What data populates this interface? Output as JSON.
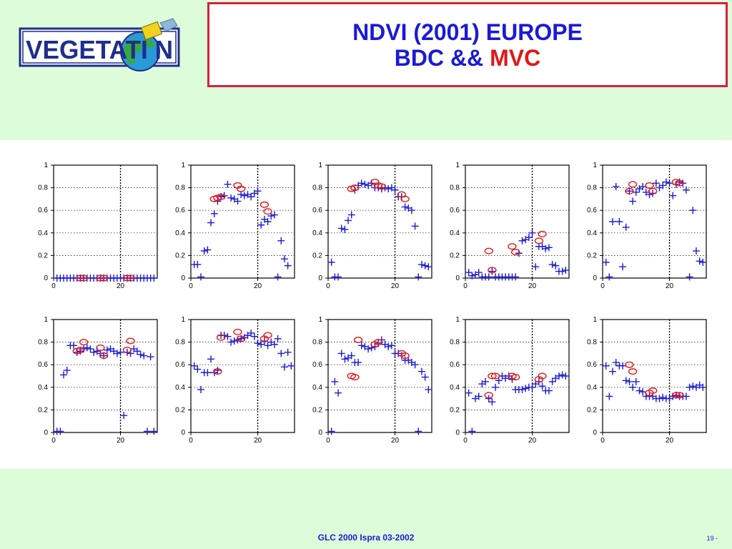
{
  "header": {
    "logo_text": "VEGETATI N",
    "title_line1": "NDVI (2001) EUROPE",
    "title_line2_prefix": "BDC && ",
    "title_line2_highlight": "MVC"
  },
  "footer": {
    "text": "GLC 2000 Ispra 03-2002",
    "page": "19 -"
  },
  "colors": {
    "background": "#ddfcd9",
    "title_border": "#d61f3f",
    "title_text": "#1a1ad6",
    "highlight": "#e01818",
    "bdc_marker": "#1a1ad6",
    "mvc_marker": "#e01818",
    "grid": "#000000"
  },
  "chart_data": [
    {
      "type": "scatter",
      "xlim": [
        0,
        31
      ],
      "ylim": [
        0,
        1
      ],
      "vline": 20,
      "xticks": [
        "0",
        "20"
      ],
      "yticks": [
        "0",
        "0.2",
        "0.4",
        "0.6",
        "0.8",
        "1"
      ],
      "grid": "dotted",
      "series": [
        {
          "marker": "plus",
          "x": [
            1,
            2,
            3,
            4,
            5,
            6,
            7,
            8,
            9,
            10,
            11,
            12,
            13,
            14,
            15,
            16,
            17,
            18,
            19,
            20,
            21,
            22,
            23,
            24,
            25,
            26,
            27,
            28,
            29,
            30
          ],
          "y": [
            0,
            0,
            0,
            0,
            0,
            0,
            0,
            0,
            0,
            0,
            0,
            0,
            0,
            0,
            0,
            0,
            0,
            0,
            0,
            0,
            0,
            0,
            0,
            0,
            0,
            0,
            0,
            0,
            0,
            0
          ]
        },
        {
          "marker": "circle",
          "x": [
            8,
            9,
            14,
            15,
            22,
            23
          ],
          "y": [
            0,
            0,
            0,
            0,
            0,
            0
          ]
        }
      ]
    },
    {
      "type": "scatter",
      "xlim": [
        0,
        31
      ],
      "ylim": [
        0,
        1
      ],
      "vline": 20,
      "xticks": [
        "0",
        "20"
      ],
      "yticks": [
        "0",
        "0.2",
        "0.4",
        "0.6",
        "0.8",
        "1"
      ],
      "grid": "dotted",
      "series": [
        {
          "marker": "plus",
          "x": [
            1,
            2,
            3,
            4,
            5,
            6,
            7,
            8,
            9,
            10,
            11,
            12,
            13,
            14,
            15,
            16,
            17,
            18,
            19,
            20,
            21,
            22,
            23,
            24,
            25,
            26,
            27,
            28,
            29
          ],
          "y": [
            0.12,
            0.12,
            0.01,
            0.24,
            0.25,
            0.49,
            0.57,
            0.68,
            0.72,
            0.73,
            0.83,
            0.71,
            0.7,
            0.68,
            0.74,
            0.73,
            0.74,
            0.72,
            0.75,
            0.77,
            0.47,
            0.52,
            0.5,
            0.55,
            0.56,
            0.01,
            0.33,
            0.17,
            0.11
          ]
        },
        {
          "marker": "circle",
          "x": [
            7,
            8,
            9,
            14,
            15,
            22,
            23
          ],
          "y": [
            0.7,
            0.71,
            0.72,
            0.82,
            0.79,
            0.65,
            0.59
          ]
        }
      ]
    },
    {
      "type": "scatter",
      "xlim": [
        0,
        31
      ],
      "ylim": [
        0,
        1
      ],
      "vline": 20,
      "xticks": [
        "0",
        "20"
      ],
      "yticks": [
        "0",
        "0.2",
        "0.4",
        "0.6",
        "0.8",
        "1"
      ],
      "grid": "dotted",
      "series": [
        {
          "marker": "plus",
          "x": [
            1,
            2,
            3,
            4,
            5,
            6,
            7,
            8,
            9,
            10,
            11,
            12,
            13,
            14,
            15,
            16,
            17,
            18,
            19,
            20,
            21,
            22,
            23,
            24,
            25,
            26,
            27,
            28,
            29,
            30
          ],
          "y": [
            0.14,
            0.01,
            0.01,
            0.44,
            0.43,
            0.51,
            0.56,
            0.78,
            0.82,
            0.84,
            0.83,
            0.82,
            0.84,
            0.8,
            0.8,
            0.79,
            0.8,
            0.79,
            0.8,
            0.78,
            0.72,
            0.72,
            0.63,
            0.62,
            0.6,
            0.46,
            0.01,
            0.12,
            0.11,
            0.1
          ]
        },
        {
          "marker": "circle",
          "x": [
            7,
            8,
            14,
            15,
            16,
            22,
            23
          ],
          "y": [
            0.79,
            0.8,
            0.85,
            0.82,
            0.81,
            0.74,
            0.7
          ]
        }
      ]
    },
    {
      "type": "scatter",
      "xlim": [
        0,
        31
      ],
      "ylim": [
        0,
        1
      ],
      "vline": 20,
      "xticks": [
        "0",
        "20"
      ],
      "yticks": [
        "0",
        "0.2",
        "0.4",
        "0.6",
        "0.8",
        "1"
      ],
      "grid": "dotted",
      "series": [
        {
          "marker": "plus",
          "x": [
            1,
            2,
            3,
            4,
            5,
            6,
            7,
            8,
            9,
            10,
            11,
            12,
            13,
            14,
            15,
            16,
            17,
            18,
            19,
            20,
            21,
            22,
            23,
            24,
            25,
            26,
            27,
            28,
            29,
            30
          ],
          "y": [
            0.05,
            0.02,
            0.03,
            0.05,
            0.01,
            0.01,
            0.01,
            0.06,
            0.01,
            0.01,
            0.01,
            0.01,
            0.01,
            0.01,
            0.01,
            0.22,
            0.33,
            0.34,
            0.36,
            0.4,
            0.1,
            0.28,
            0.28,
            0.26,
            0.27,
            0.12,
            0.11,
            0.06,
            0.06,
            0.07
          ]
        },
        {
          "marker": "circle",
          "x": [
            7,
            8,
            14,
            15,
            22,
            23
          ],
          "y": [
            0.24,
            0.07,
            0.28,
            0.23,
            0.33,
            0.39
          ]
        }
      ]
    },
    {
      "type": "scatter",
      "xlim": [
        0,
        31
      ],
      "ylim": [
        0,
        1
      ],
      "vline": 20,
      "xticks": [
        "0",
        "20"
      ],
      "yticks": [
        "0",
        "0.2",
        "0.4",
        "0.6",
        "0.8",
        "1"
      ],
      "grid": "dotted",
      "series": [
        {
          "marker": "plus",
          "x": [
            1,
            2,
            3,
            4,
            5,
            6,
            7,
            8,
            9,
            10,
            11,
            12,
            13,
            14,
            15,
            16,
            17,
            18,
            19,
            20,
            21,
            22,
            23,
            24,
            25,
            26,
            27,
            28,
            29,
            30
          ],
          "y": [
            0.14,
            0.01,
            0.5,
            0.81,
            0.5,
            0.1,
            0.45,
            0.77,
            0.68,
            0.76,
            0.79,
            0.81,
            0.76,
            0.74,
            0.75,
            0.84,
            0.8,
            0.82,
            0.85,
            0.84,
            0.73,
            0.83,
            0.85,
            0.84,
            0.78,
            0.01,
            0.6,
            0.24,
            0.15,
            0.14
          ]
        },
        {
          "marker": "circle",
          "x": [
            8,
            9,
            14,
            15,
            22,
            23
          ],
          "y": [
            0.77,
            0.83,
            0.82,
            0.77,
            0.85,
            0.84
          ]
        }
      ]
    },
    {
      "type": "scatter",
      "xlim": [
        0,
        31
      ],
      "ylim": [
        0,
        1
      ],
      "vline": 20,
      "xticks": [
        "0",
        "20"
      ],
      "yticks": [
        "0",
        "0.2",
        "0.4",
        "0.6",
        "0.8",
        "1"
      ],
      "grid": "dotted",
      "series": [
        {
          "marker": "plus",
          "x": [
            1,
            2,
            3,
            4,
            5,
            6,
            7,
            8,
            9,
            10,
            11,
            12,
            13,
            14,
            15,
            16,
            17,
            18,
            19,
            20,
            21,
            22,
            23,
            24,
            25,
            26,
            27,
            28,
            29,
            30
          ],
          "y": [
            0.01,
            0.01,
            0.51,
            0.55,
            0.77,
            0.77,
            0.71,
            0.72,
            0.74,
            0.75,
            0.74,
            0.71,
            0.72,
            0.7,
            0.68,
            0.73,
            0.74,
            0.72,
            0.7,
            0.71,
            0.15,
            0.71,
            0.7,
            0.74,
            0.72,
            0.69,
            0.68,
            0.01,
            0.67,
            0.01
          ]
        },
        {
          "marker": "circle",
          "x": [
            7,
            8,
            9,
            14,
            15,
            22,
            23
          ],
          "y": [
            0.72,
            0.73,
            0.8,
            0.75,
            0.68,
            0.73,
            0.81
          ]
        }
      ]
    },
    {
      "type": "scatter",
      "xlim": [
        0,
        31
      ],
      "ylim": [
        0,
        1
      ],
      "vline": 20,
      "xticks": [
        "0",
        "20"
      ],
      "yticks": [
        "0",
        "0.2",
        "0.4",
        "0.6",
        "0.8",
        "1"
      ],
      "grid": "dotted",
      "series": [
        {
          "marker": "plus",
          "x": [
            1,
            2,
            3,
            4,
            5,
            6,
            7,
            8,
            9,
            10,
            11,
            12,
            13,
            14,
            15,
            16,
            17,
            18,
            19,
            20,
            21,
            22,
            23,
            24,
            25,
            26,
            27,
            28,
            29,
            30
          ],
          "y": [
            0.59,
            0.56,
            0.38,
            0.53,
            0.53,
            0.65,
            0.53,
            0.55,
            0.86,
            0.86,
            0.85,
            0.8,
            0.81,
            0.82,
            0.83,
            0.84,
            0.86,
            0.88,
            0.85,
            0.79,
            0.78,
            0.81,
            0.77,
            0.8,
            0.78,
            0.83,
            0.7,
            0.58,
            0.71,
            0.59
          ]
        },
        {
          "marker": "circle",
          "x": [
            8,
            9,
            14,
            15,
            22,
            23
          ],
          "y": [
            0.54,
            0.84,
            0.89,
            0.83,
            0.83,
            0.86
          ]
        }
      ]
    },
    {
      "type": "scatter",
      "xlim": [
        0,
        31
      ],
      "ylim": [
        0,
        1
      ],
      "vline": 20,
      "xticks": [
        "0",
        "20"
      ],
      "yticks": [
        "0",
        "0.2",
        "0.4",
        "0.6",
        "0.8",
        "1"
      ],
      "grid": "dotted",
      "series": [
        {
          "marker": "plus",
          "x": [
            1,
            2,
            3,
            4,
            5,
            6,
            7,
            8,
            9,
            10,
            11,
            12,
            13,
            14,
            15,
            16,
            17,
            18,
            19,
            20,
            21,
            22,
            23,
            24,
            25,
            26,
            27,
            28,
            29,
            30
          ],
          "y": [
            0.01,
            0.45,
            0.35,
            0.7,
            0.65,
            0.66,
            0.68,
            0.62,
            0.62,
            0.77,
            0.76,
            0.74,
            0.75,
            0.76,
            0.79,
            0.82,
            0.78,
            0.76,
            0.77,
            0.7,
            0.7,
            0.68,
            0.64,
            0.64,
            0.62,
            0.6,
            0.01,
            0.54,
            0.49,
            0.38
          ]
        },
        {
          "marker": "circle",
          "x": [
            7,
            8,
            9,
            14,
            15,
            22,
            23
          ],
          "y": [
            0.5,
            0.49,
            0.82,
            0.78,
            0.8,
            0.7,
            0.68
          ]
        }
      ]
    },
    {
      "type": "scatter",
      "xlim": [
        0,
        31
      ],
      "ylim": [
        0,
        1
      ],
      "vline": 20,
      "xticks": [
        "0",
        "20"
      ],
      "yticks": [
        "0",
        "0.2",
        "0.4",
        "0.6",
        "0.8",
        "1"
      ],
      "grid": "dotted",
      "series": [
        {
          "marker": "plus",
          "x": [
            1,
            2,
            3,
            4,
            5,
            6,
            7,
            8,
            9,
            10,
            11,
            12,
            13,
            14,
            15,
            16,
            17,
            18,
            19,
            20,
            21,
            22,
            23,
            24,
            25,
            26,
            27,
            28,
            29,
            30
          ],
          "y": [
            0.35,
            0.01,
            0.3,
            0.32,
            0.43,
            0.45,
            0.3,
            0.27,
            0.4,
            0.46,
            0.5,
            0.48,
            0.5,
            0.47,
            0.38,
            0.38,
            0.38,
            0.39,
            0.4,
            0.4,
            0.43,
            0.45,
            0.41,
            0.37,
            0.37,
            0.45,
            0.48,
            0.5,
            0.51,
            0.5
          ]
        },
        {
          "marker": "circle",
          "x": [
            7,
            8,
            9,
            14,
            15,
            22,
            23
          ],
          "y": [
            0.33,
            0.5,
            0.5,
            0.5,
            0.49,
            0.47,
            0.5
          ]
        }
      ]
    },
    {
      "type": "scatter",
      "xlim": [
        0,
        31
      ],
      "ylim": [
        0,
        1
      ],
      "vline": 20,
      "xticks": [
        "0",
        "20"
      ],
      "yticks": [
        "0",
        "0.2",
        "0.4",
        "0.6",
        "0.8",
        "1"
      ],
      "grid": "dotted",
      "series": [
        {
          "marker": "plus",
          "x": [
            1,
            2,
            3,
            4,
            5,
            6,
            7,
            8,
            9,
            10,
            11,
            12,
            13,
            14,
            15,
            16,
            17,
            18,
            19,
            20,
            21,
            22,
            23,
            24,
            25,
            26,
            27,
            28,
            29,
            30
          ],
          "y": [
            0.59,
            0.32,
            0.54,
            0.62,
            0.59,
            0.59,
            0.46,
            0.45,
            0.4,
            0.45,
            0.37,
            0.36,
            0.32,
            0.32,
            0.32,
            0.3,
            0.3,
            0.31,
            0.3,
            0.3,
            0.32,
            0.33,
            0.32,
            0.32,
            0.32,
            0.4,
            0.41,
            0.4,
            0.42,
            0.4
          ]
        },
        {
          "marker": "circle",
          "x": [
            8,
            9,
            14,
            15,
            22,
            23
          ],
          "y": [
            0.6,
            0.54,
            0.35,
            0.37,
            0.33,
            0.33
          ]
        }
      ]
    }
  ]
}
